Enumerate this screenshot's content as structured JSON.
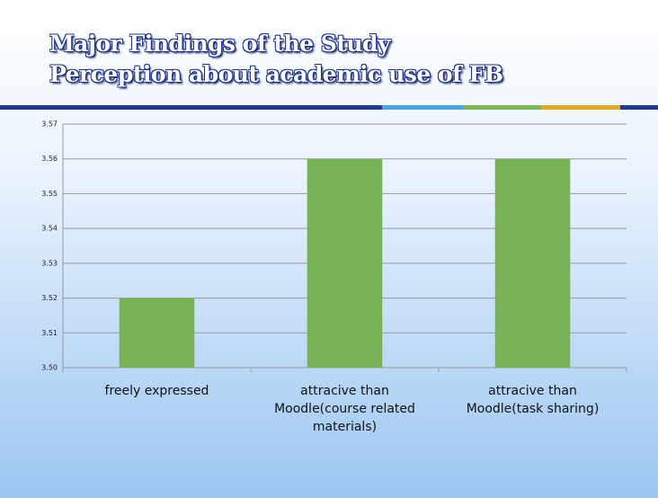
{
  "chart_data": {
    "type": "bar",
    "title": "Major Findings  of the Study",
    "subtitle": "Perception about academic use of FB",
    "categories": [
      "freely expressed",
      "attracive than Moodle(course related materials)",
      "attracive than Moodle(task sharing)"
    ],
    "values": [
      3.52,
      3.56,
      3.56
    ],
    "color": "#77b356",
    "ylim": [
      3.5,
      3.57
    ],
    "yticks": [
      {
        "value": 3.5,
        "label": "3.50"
      },
      3.51,
      3.52,
      3.53,
      3.54,
      3.55,
      3.56,
      3.57
    ],
    "grid": true
  }
}
